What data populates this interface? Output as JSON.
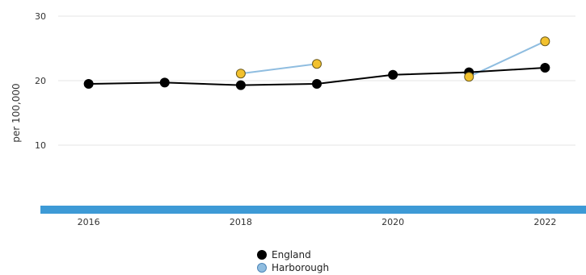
{
  "chart_data": {
    "type": "line",
    "ylabel": "per 100,000",
    "ylim": [
      0,
      30
    ],
    "y_ticks": [
      10,
      20,
      30
    ],
    "x_ticks": [
      "2016",
      "2018",
      "2020",
      "2022"
    ],
    "xlim": [
      2015.6,
      2022.4
    ],
    "series": [
      {
        "name": "England",
        "color": "#000000",
        "marker_color": "#000000",
        "points": [
          {
            "x": 2016,
            "y": 19.5
          },
          {
            "x": 2017,
            "y": 19.7
          },
          {
            "x": 2018,
            "y": 19.3
          },
          {
            "x": 2019,
            "y": 19.5
          },
          {
            "x": 2020,
            "y": 20.9
          },
          {
            "x": 2021,
            "y": 21.3
          },
          {
            "x": 2022,
            "y": 22.0
          }
        ]
      },
      {
        "name": "Harborough",
        "color": "#8fbde0",
        "marker_color": "#f2c12e",
        "segments": [
          [
            {
              "x": 2018,
              "y": 21.1
            },
            {
              "x": 2019,
              "y": 22.6
            }
          ],
          [
            {
              "x": 2021,
              "y": 20.6
            },
            {
              "x": 2022,
              "y": 26.1
            }
          ]
        ]
      }
    ],
    "axis_bar_color": "#3d9ad6",
    "grid": true,
    "legend_position": "bottom-center"
  }
}
